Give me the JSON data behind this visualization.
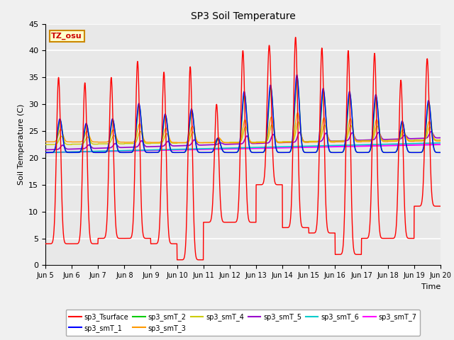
{
  "title": "SP3 Soil Temperature",
  "ylabel": "Soil Temperature (C)",
  "xlabel": "Time",
  "annotation": "TZ_osu",
  "ylim": [
    0,
    45
  ],
  "ytick_labels": [
    0,
    5,
    10,
    15,
    20,
    25,
    30,
    35,
    40,
    45
  ],
  "xtick_labels": [
    "Jun 5",
    "Jun 6",
    "Jun 7",
    "Jun 8",
    "Jun 9",
    "Jun 10",
    "Jun 11",
    "Jun 12",
    "Jun 13",
    "Jun 14",
    "Jun 15",
    "Jun 16",
    "Jun 17",
    "Jun 18",
    "Jun 19",
    "Jun 20"
  ],
  "plot_bg_color": "#e8e8e8",
  "fig_bg_color": "#f0f0f0",
  "grid_color": "#ffffff",
  "series_colors": {
    "sp3_Tsurface": "#ff0000",
    "sp3_smT_1": "#0000ff",
    "sp3_smT_2": "#00cc00",
    "sp3_smT_3": "#ff9900",
    "sp3_smT_4": "#cccc00",
    "sp3_smT_5": "#9900cc",
    "sp3_smT_6": "#00cccc",
    "sp3_smT_7": "#ff00ff"
  },
  "annotation_bg": "#ffffcc",
  "annotation_border": "#cc8800",
  "annotation_text_color": "#cc0000",
  "n_days": 15,
  "pts_per_day": 144,
  "day_peaks_surface": [
    35,
    34,
    35,
    38,
    36,
    37,
    30,
    40,
    41,
    42.5,
    40.5,
    40,
    39.5,
    34.5,
    38.5
  ],
  "day_mins_surface": [
    4,
    4,
    5,
    5,
    4,
    1,
    8,
    8,
    15,
    7,
    6,
    2,
    5,
    5,
    11
  ]
}
